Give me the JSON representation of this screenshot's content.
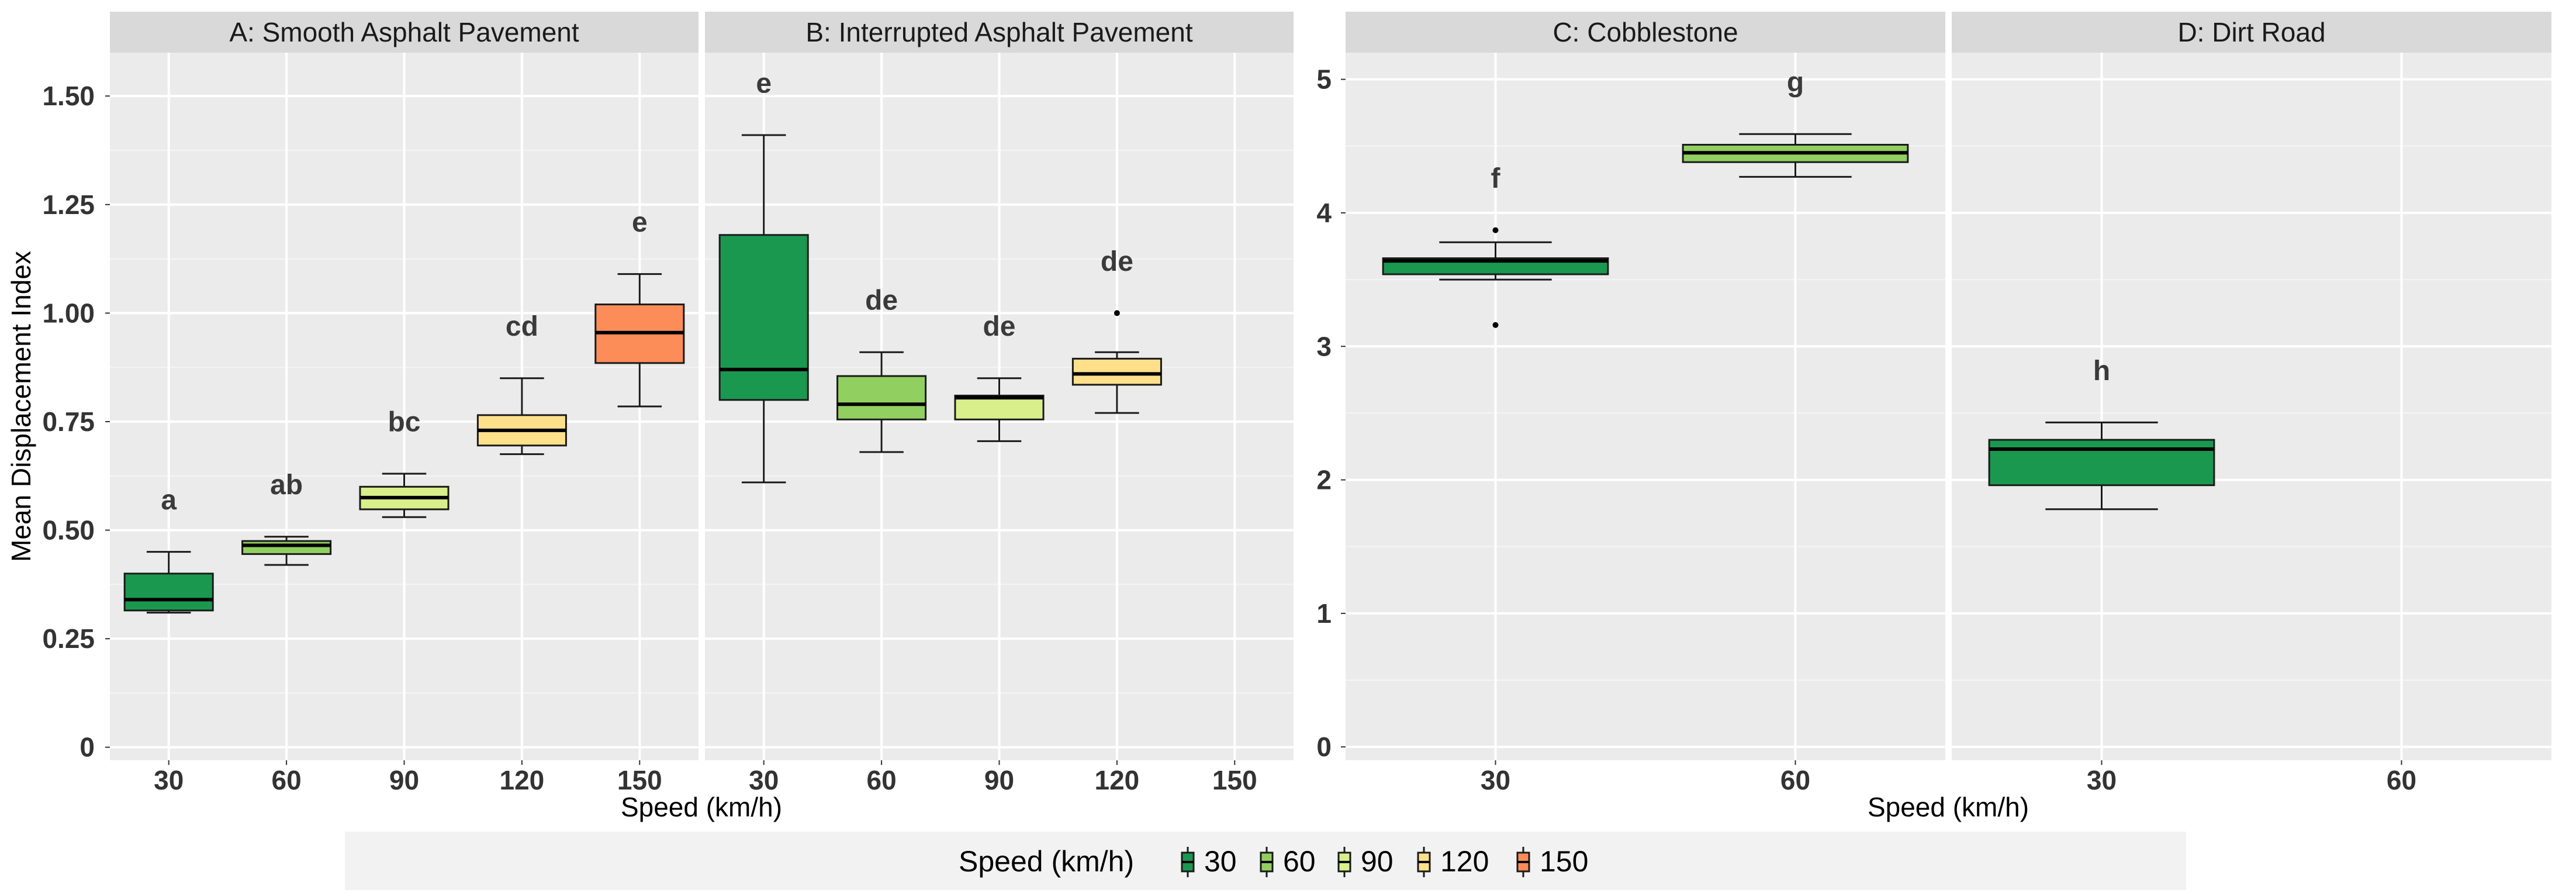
{
  "chart_data": {
    "type": "boxplot",
    "legend": {
      "title": "Speed (km/h)",
      "position": "bottom",
      "entries": [
        {
          "label": "30",
          "color": "#1a9850"
        },
        {
          "label": "60",
          "color": "#91cf60"
        },
        {
          "label": "90",
          "color": "#d9ef8b"
        },
        {
          "label": "120",
          "color": "#fee08b"
        },
        {
          "label": "150",
          "color": "#fc8d59"
        }
      ]
    },
    "groups": [
      {
        "ylabel": "Mean Displacement Index",
        "xlabel": "Speed (km/h)",
        "ylim": [
          -0.03,
          1.6
        ],
        "yticks": [
          0,
          0.25,
          0.5,
          0.75,
          1.0,
          1.25,
          1.5
        ],
        "ytick_labels": [
          "0",
          "0.25",
          "0.50",
          "0.75",
          "1.00",
          "1.25",
          "1.50"
        ],
        "panels": [
          {
            "title": "A: Smooth Asphalt Pavement",
            "categories": [
              "30",
              "60",
              "90",
              "120",
              "150"
            ],
            "boxes": [
              {
                "x": "30",
                "color": "#1a9850",
                "min": 0.31,
                "q1": 0.315,
                "median": 0.34,
                "q3": 0.4,
                "max": 0.45,
                "outliers": [],
                "letter": "a"
              },
              {
                "x": "60",
                "color": "#91cf60",
                "min": 0.42,
                "q1": 0.445,
                "median": 0.465,
                "q3": 0.475,
                "max": 0.485,
                "outliers": [],
                "letter": "ab"
              },
              {
                "x": "90",
                "color": "#d9ef8b",
                "min": 0.53,
                "q1": 0.548,
                "median": 0.575,
                "q3": 0.6,
                "max": 0.63,
                "outliers": [],
                "letter": "bc"
              },
              {
                "x": "120",
                "color": "#fee08b",
                "min": 0.675,
                "q1": 0.695,
                "median": 0.73,
                "q3": 0.765,
                "max": 0.85,
                "outliers": [],
                "letter": "cd"
              },
              {
                "x": "150",
                "color": "#fc8d59",
                "min": 0.785,
                "q1": 0.885,
                "median": 0.955,
                "q3": 1.02,
                "max": 1.09,
                "outliers": [],
                "letter": "e"
              }
            ]
          },
          {
            "title": "B: Interrupted Asphalt Pavement",
            "categories": [
              "30",
              "60",
              "90",
              "120",
              "150"
            ],
            "boxes": [
              {
                "x": "30",
                "color": "#1a9850",
                "min": 0.61,
                "q1": 0.8,
                "median": 0.87,
                "q3": 1.18,
                "max": 1.41,
                "outliers": [],
                "letter": "e"
              },
              {
                "x": "60",
                "color": "#91cf60",
                "min": 0.68,
                "q1": 0.755,
                "median": 0.79,
                "q3": 0.855,
                "max": 0.91,
                "outliers": [],
                "letter": "de"
              },
              {
                "x": "90",
                "color": "#d9ef8b",
                "min": 0.705,
                "q1": 0.755,
                "median": 0.805,
                "q3": 0.81,
                "max": 0.85,
                "outliers": [],
                "letter": "de"
              },
              {
                "x": "120",
                "color": "#fee08b",
                "min": 0.77,
                "q1": 0.835,
                "median": 0.86,
                "q3": 0.895,
                "max": 0.91,
                "outliers": [
                  1.0
                ],
                "letter": "de"
              }
            ]
          }
        ]
      },
      {
        "ylabel": "",
        "xlabel": "Speed (km/h)",
        "ylim": [
          -0.1,
          5.2
        ],
        "yticks": [
          0,
          1,
          2,
          3,
          4,
          5
        ],
        "ytick_labels": [
          "0",
          "1",
          "2",
          "3",
          "4",
          "5"
        ],
        "panels": [
          {
            "title": "C: Cobblestone",
            "categories": [
              "30",
              "60"
            ],
            "boxes": [
              {
                "x": "30",
                "color": "#1a9850",
                "min": 3.5,
                "q1": 3.54,
                "median": 3.64,
                "q3": 3.66,
                "max": 3.78,
                "outliers": [
                  3.87,
                  3.16
                ],
                "letter": "f"
              },
              {
                "x": "60",
                "color": "#91cf60",
                "min": 4.27,
                "q1": 4.38,
                "median": 4.45,
                "q3": 4.51,
                "max": 4.59,
                "outliers": [],
                "letter": "g"
              }
            ]
          },
          {
            "title": "D: Dirt Road",
            "categories": [
              "30",
              "60"
            ],
            "boxes": [
              {
                "x": "30",
                "color": "#1a9850",
                "min": 1.78,
                "q1": 1.96,
                "median": 2.23,
                "q3": 2.3,
                "max": 2.43,
                "outliers": [],
                "letter": "h"
              }
            ]
          }
        ]
      }
    ]
  }
}
